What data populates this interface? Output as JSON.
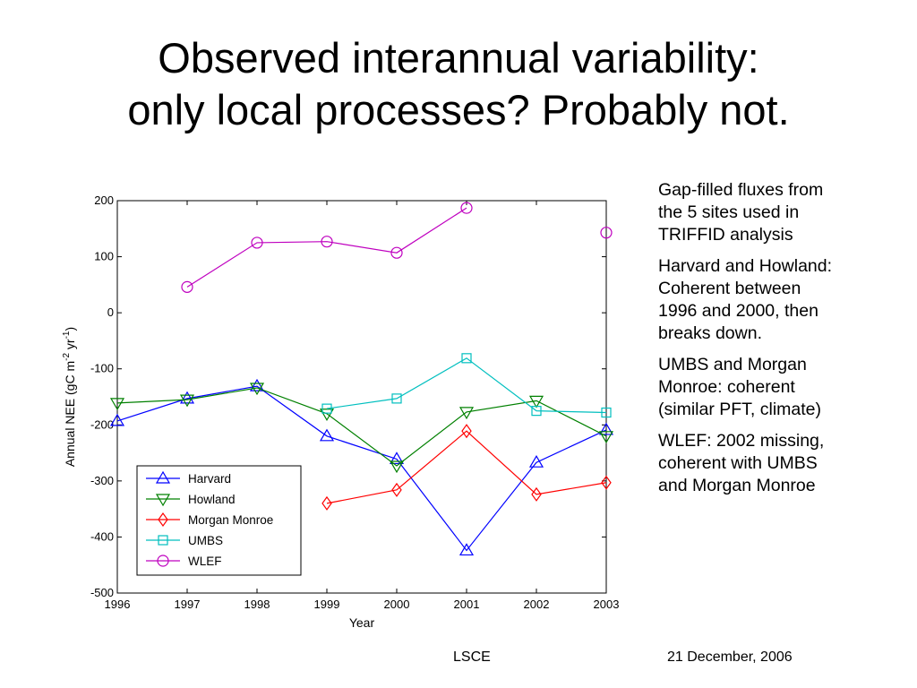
{
  "slide": {
    "title_lines": [
      "Observed interannual variability:",
      "only local processes?  Probably not."
    ],
    "notes": [
      [
        "Gap-filled fluxes from",
        "the 5 sites used in",
        "TRIFFID analysis"
      ],
      [
        "Harvard and Howland:",
        "Coherent between",
        "1996 and 2000, then",
        "breaks down."
      ],
      [
        "UMBS and Morgan",
        "Monroe:  coherent",
        "(similar PFT, climate)"
      ],
      [
        "WLEF:  2002 missing,",
        "coherent with UMBS",
        "and Morgan Monroe"
      ]
    ],
    "footer_left": "LSCE",
    "footer_right": "21 December, 2006"
  },
  "chart_data": {
    "type": "line",
    "xlabel": "Year",
    "ylabel_parts": [
      "Annual NEE (gC m",
      "-2",
      " yr",
      "-1",
      ")"
    ],
    "x": [
      1996,
      1997,
      1998,
      1999,
      2000,
      2001,
      2002,
      2003
    ],
    "xlim": [
      1996,
      2003
    ],
    "ylim": [
      -500,
      200
    ],
    "yticks": [
      200,
      100,
      0,
      -100,
      -200,
      -300,
      -400,
      -500
    ],
    "grid": false,
    "legend_position": "lower-left",
    "series": [
      {
        "name": "Harvard",
        "color": "#0000ff",
        "marker": "triangle-up",
        "values": [
          -193,
          -153,
          -131,
          -220,
          -261,
          -424,
          -267,
          -209
        ]
      },
      {
        "name": "Howland",
        "color": "#008000",
        "marker": "triangle-down",
        "values": [
          -161,
          -155,
          -134,
          -180,
          -273,
          -177,
          -157,
          -220
        ]
      },
      {
        "name": "Morgan Monroe",
        "color": "#ff0000",
        "marker": "diamond",
        "values": [
          null,
          null,
          null,
          -340,
          -316,
          -211,
          -324,
          -303
        ]
      },
      {
        "name": "UMBS",
        "color": "#00bfbf",
        "marker": "square",
        "values": [
          null,
          null,
          null,
          -171,
          -153,
          -81,
          -175,
          -178
        ]
      },
      {
        "name": "WLEF",
        "color": "#bf00bf",
        "marker": "circle",
        "values": [
          null,
          46,
          125,
          127,
          107,
          187,
          null,
          143
        ]
      }
    ]
  }
}
